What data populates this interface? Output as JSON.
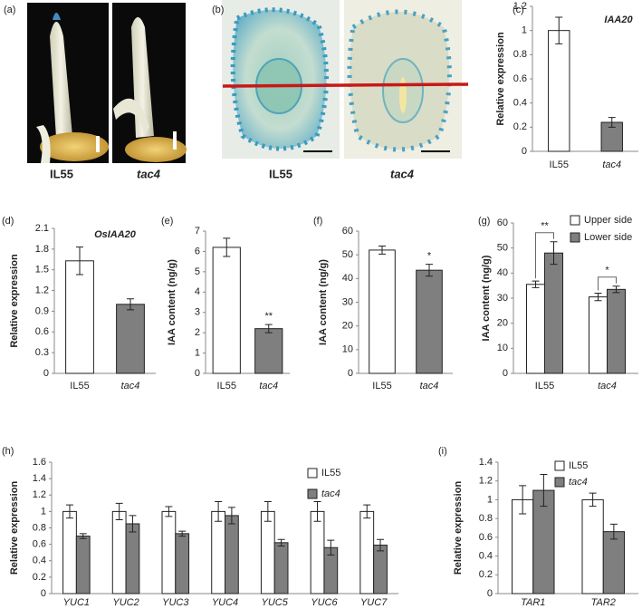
{
  "photos": [
    {
      "label": "(a)",
      "captions": [
        "IL55",
        "tac4"
      ]
    },
    {
      "label": "(b)",
      "captions": [
        "IL55",
        "tac4"
      ]
    }
  ],
  "chart_data": [
    {
      "type": "bar",
      "label": "(c)",
      "title": "IAA20",
      "y_label": "Relative expression",
      "categories": [
        "IL55",
        "tac4"
      ],
      "values": [
        1,
        0.24
      ],
      "errors": [
        0.11,
        0.04
      ],
      "colors": [
        "#ffffff",
        "#7f7f7f"
      ],
      "ylim": [
        0,
        1.2
      ],
      "yticks": [
        0,
        0.2,
        0.4,
        0.6,
        0.8,
        1,
        1.2
      ]
    },
    {
      "type": "bar",
      "label": "(d)",
      "title": "OsIAA20",
      "y_label": "Relative expression",
      "categories": [
        "IL55",
        "tac4"
      ],
      "values": [
        1.63,
        1.0
      ],
      "errors": [
        0.2,
        0.08
      ],
      "colors": [
        "#ffffff",
        "#7f7f7f"
      ],
      "ylim": [
        0,
        2.1
      ],
      "yticks": [
        0,
        0.3,
        0.6,
        0.9,
        1.2,
        1.5,
        1.8,
        2.1
      ]
    },
    {
      "type": "bar",
      "label": "(e)",
      "y_label": "IAA content (ng/g)",
      "categories": [
        "IL55",
        "tac4"
      ],
      "values": [
        6.2,
        2.2
      ],
      "errors": [
        0.45,
        0.2
      ],
      "colors": [
        "#ffffff",
        "#7f7f7f"
      ],
      "annotations": [
        "**"
      ],
      "ylim": [
        0,
        7
      ],
      "yticks": [
        0,
        1,
        2,
        3,
        4,
        5,
        6,
        7
      ]
    },
    {
      "type": "bar",
      "label": "(f)",
      "y_label": "IAA content (ng/g)",
      "categories": [
        "IL55",
        "tac4"
      ],
      "values": [
        52,
        43.5
      ],
      "errors": [
        1.7,
        2.5
      ],
      "colors": [
        "#ffffff",
        "#7f7f7f"
      ],
      "annotations": [
        "*"
      ],
      "ylim": [
        0,
        60
      ],
      "yticks": [
        0,
        10,
        20,
        30,
        40,
        50,
        60
      ]
    },
    {
      "type": "grouped_bar",
      "label": "(g)",
      "y_label": "IAA content (ng/g)",
      "categories": [
        "IL55",
        "tac4"
      ],
      "series": [
        {
          "name": "Upper side",
          "color": "#ffffff",
          "values": [
            35.5,
            30.5
          ],
          "errors": [
            1.3,
            1.5
          ]
        },
        {
          "name": "Lower side",
          "color": "#7f7f7f",
          "values": [
            48,
            33.5
          ],
          "errors": [
            4.5,
            1.3
          ]
        }
      ],
      "annotations": [
        "**",
        "*"
      ],
      "ylim": [
        0,
        60
      ],
      "yticks": [
        0,
        10,
        20,
        30,
        40,
        50,
        60
      ]
    },
    {
      "type": "grouped_bar",
      "label": "(h)",
      "y_label": "Relative expression",
      "categories": [
        "YUC1",
        "YUC2",
        "YUC3",
        "YUC4",
        "YUC5",
        "YUC6",
        "YUC7"
      ],
      "series": [
        {
          "name": "IL55",
          "color": "#ffffff",
          "values": [
            1,
            1,
            1,
            1,
            1,
            1,
            1
          ],
          "errors": [
            0.08,
            0.1,
            0.06,
            0.12,
            0.12,
            0.12,
            0.08
          ]
        },
        {
          "name": "tac4",
          "color": "#7f7f7f",
          "values": [
            0.7,
            0.85,
            0.73,
            0.95,
            0.62,
            0.56,
            0.59
          ],
          "errors": [
            0.03,
            0.1,
            0.03,
            0.1,
            0.04,
            0.09,
            0.07
          ]
        }
      ],
      "ylim": [
        0,
        1.6
      ],
      "yticks": [
        0,
        0.2,
        0.4,
        0.6,
        0.8,
        1,
        1.2,
        1.4,
        1.6
      ]
    },
    {
      "type": "grouped_bar",
      "label": "(i)",
      "y_label": "Relative expression",
      "categories": [
        "TAR1",
        "TAR2"
      ],
      "series": [
        {
          "name": "IL55",
          "color": "#ffffff",
          "values": [
            1,
            1
          ],
          "errors": [
            0.15,
            0.07
          ]
        },
        {
          "name": "tac4",
          "color": "#7f7f7f",
          "values": [
            1.1,
            0.66
          ],
          "errors": [
            0.17,
            0.08
          ]
        }
      ],
      "ylim": [
        0,
        1.4
      ],
      "yticks": [
        0,
        0.2,
        0.4,
        0.6,
        0.8,
        1,
        1.2,
        1.4
      ]
    }
  ]
}
